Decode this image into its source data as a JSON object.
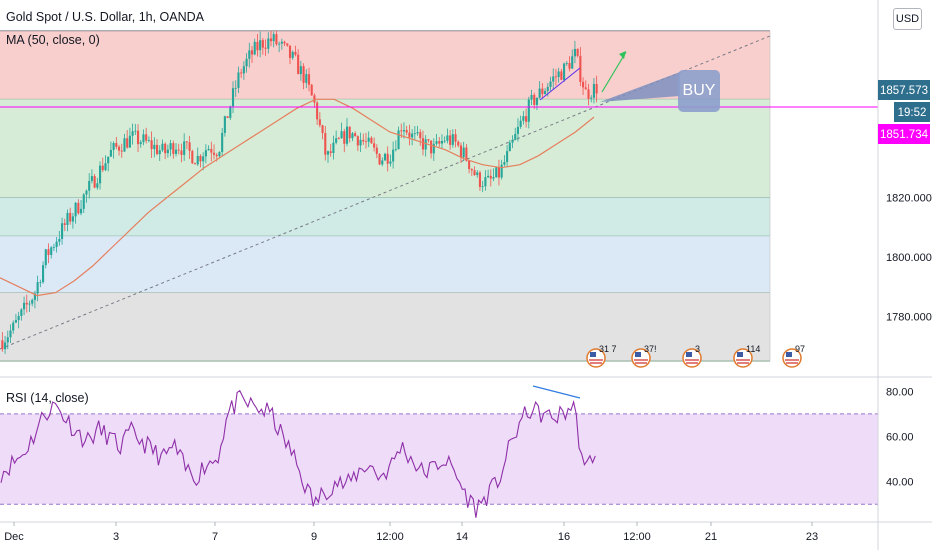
{
  "header": {
    "symbol_title": "Gold Spot / U.S. Dollar, 1h, OANDA",
    "ma_label": "MA (50, close, 0)",
    "rsi_label": "RSI (14, close)",
    "currency_button": "USD"
  },
  "price_axis": {
    "ticks": [
      "1820.000",
      "1800.000",
      "1780.000"
    ],
    "ylim": [
      1762,
      1883
    ],
    "current_price": "1857.573",
    "countdown": "19:52",
    "level_price": "1851.734",
    "current_price_color": "#2e6f8e",
    "level_price_color": "#ff00ff"
  },
  "rsi_axis": {
    "ticks": [
      "80.00",
      "60.00",
      "40.00"
    ],
    "ylim": [
      23,
      85
    ],
    "band_upper": 70,
    "band_lower": 30
  },
  "time_axis": {
    "labels": [
      "Dec",
      "3",
      "7",
      "9",
      "12:00",
      "14",
      "16",
      "12:00",
      "21",
      "23"
    ]
  },
  "annotation": {
    "buy_label": "BUY"
  },
  "event_badges": [
    "31 7",
    "37!",
    "3",
    "114",
    "97"
  ],
  "chart_data": [
    {
      "type": "line",
      "title": "Gold Spot / U.S. Dollar, 1h, OANDA",
      "series": [
        {
          "name": "MA (50, close, 0)",
          "values": [
            1793,
            1790,
            1787,
            1788,
            1792,
            1797,
            1803,
            1809,
            1815,
            1820,
            1825,
            1830,
            1834,
            1838,
            1842,
            1846,
            1850,
            1853,
            1853,
            1850,
            1846,
            1842,
            1840,
            1838,
            1836,
            1833,
            1831,
            1830,
            1831,
            1834,
            1838,
            1842,
            1847
          ]
        }
      ],
      "price_path": [
        1772,
        1776,
        1782,
        1788,
        1800,
        1806,
        1812,
        1817,
        1823,
        1829,
        1835,
        1838,
        1840,
        1839,
        1837,
        1835,
        1838,
        1836,
        1833,
        1837,
        1836,
        1850,
        1862,
        1868,
        1872,
        1873,
        1870,
        1866,
        1860,
        1850,
        1833,
        1838,
        1842,
        1840,
        1837,
        1833,
        1835,
        1845,
        1840,
        1838,
        1836,
        1840,
        1838,
        1833,
        1826,
        1825,
        1828,
        1836,
        1845,
        1852,
        1856,
        1860,
        1863,
        1868,
        1855,
        1857
      ],
      "ylim": [
        1762,
        1883
      ],
      "price_zones": [
        {
          "from": 1853,
          "to": 1876,
          "color": "#f8cfcc"
        },
        {
          "from": 1820,
          "to": 1853,
          "color": "#d7ecd6"
        },
        {
          "from": 1807,
          "to": 1820,
          "color": "#d0eae6"
        },
        {
          "from": 1788,
          "to": 1807,
          "color": "#dbe9f7"
        },
        {
          "from": 1765,
          "to": 1788,
          "color": "#e2e2e2"
        }
      ]
    },
    {
      "type": "line",
      "title": "RSI (14, close)",
      "series": [
        {
          "name": "RSI (14, close)",
          "values": [
            44,
            48,
            52,
            60,
            70,
            74,
            68,
            62,
            58,
            63,
            60,
            55,
            62,
            58,
            54,
            50,
            56,
            46,
            42,
            48,
            50,
            70,
            76,
            74,
            72,
            70,
            60,
            52,
            40,
            30,
            36,
            40,
            38,
            44,
            48,
            42,
            46,
            56,
            50,
            44,
            46,
            50,
            44,
            34,
            28,
            34,
            40,
            54,
            66,
            72,
            70,
            68,
            70,
            74,
            44,
            54
          ]
        }
      ],
      "ylim": [
        23,
        85
      ]
    }
  ]
}
